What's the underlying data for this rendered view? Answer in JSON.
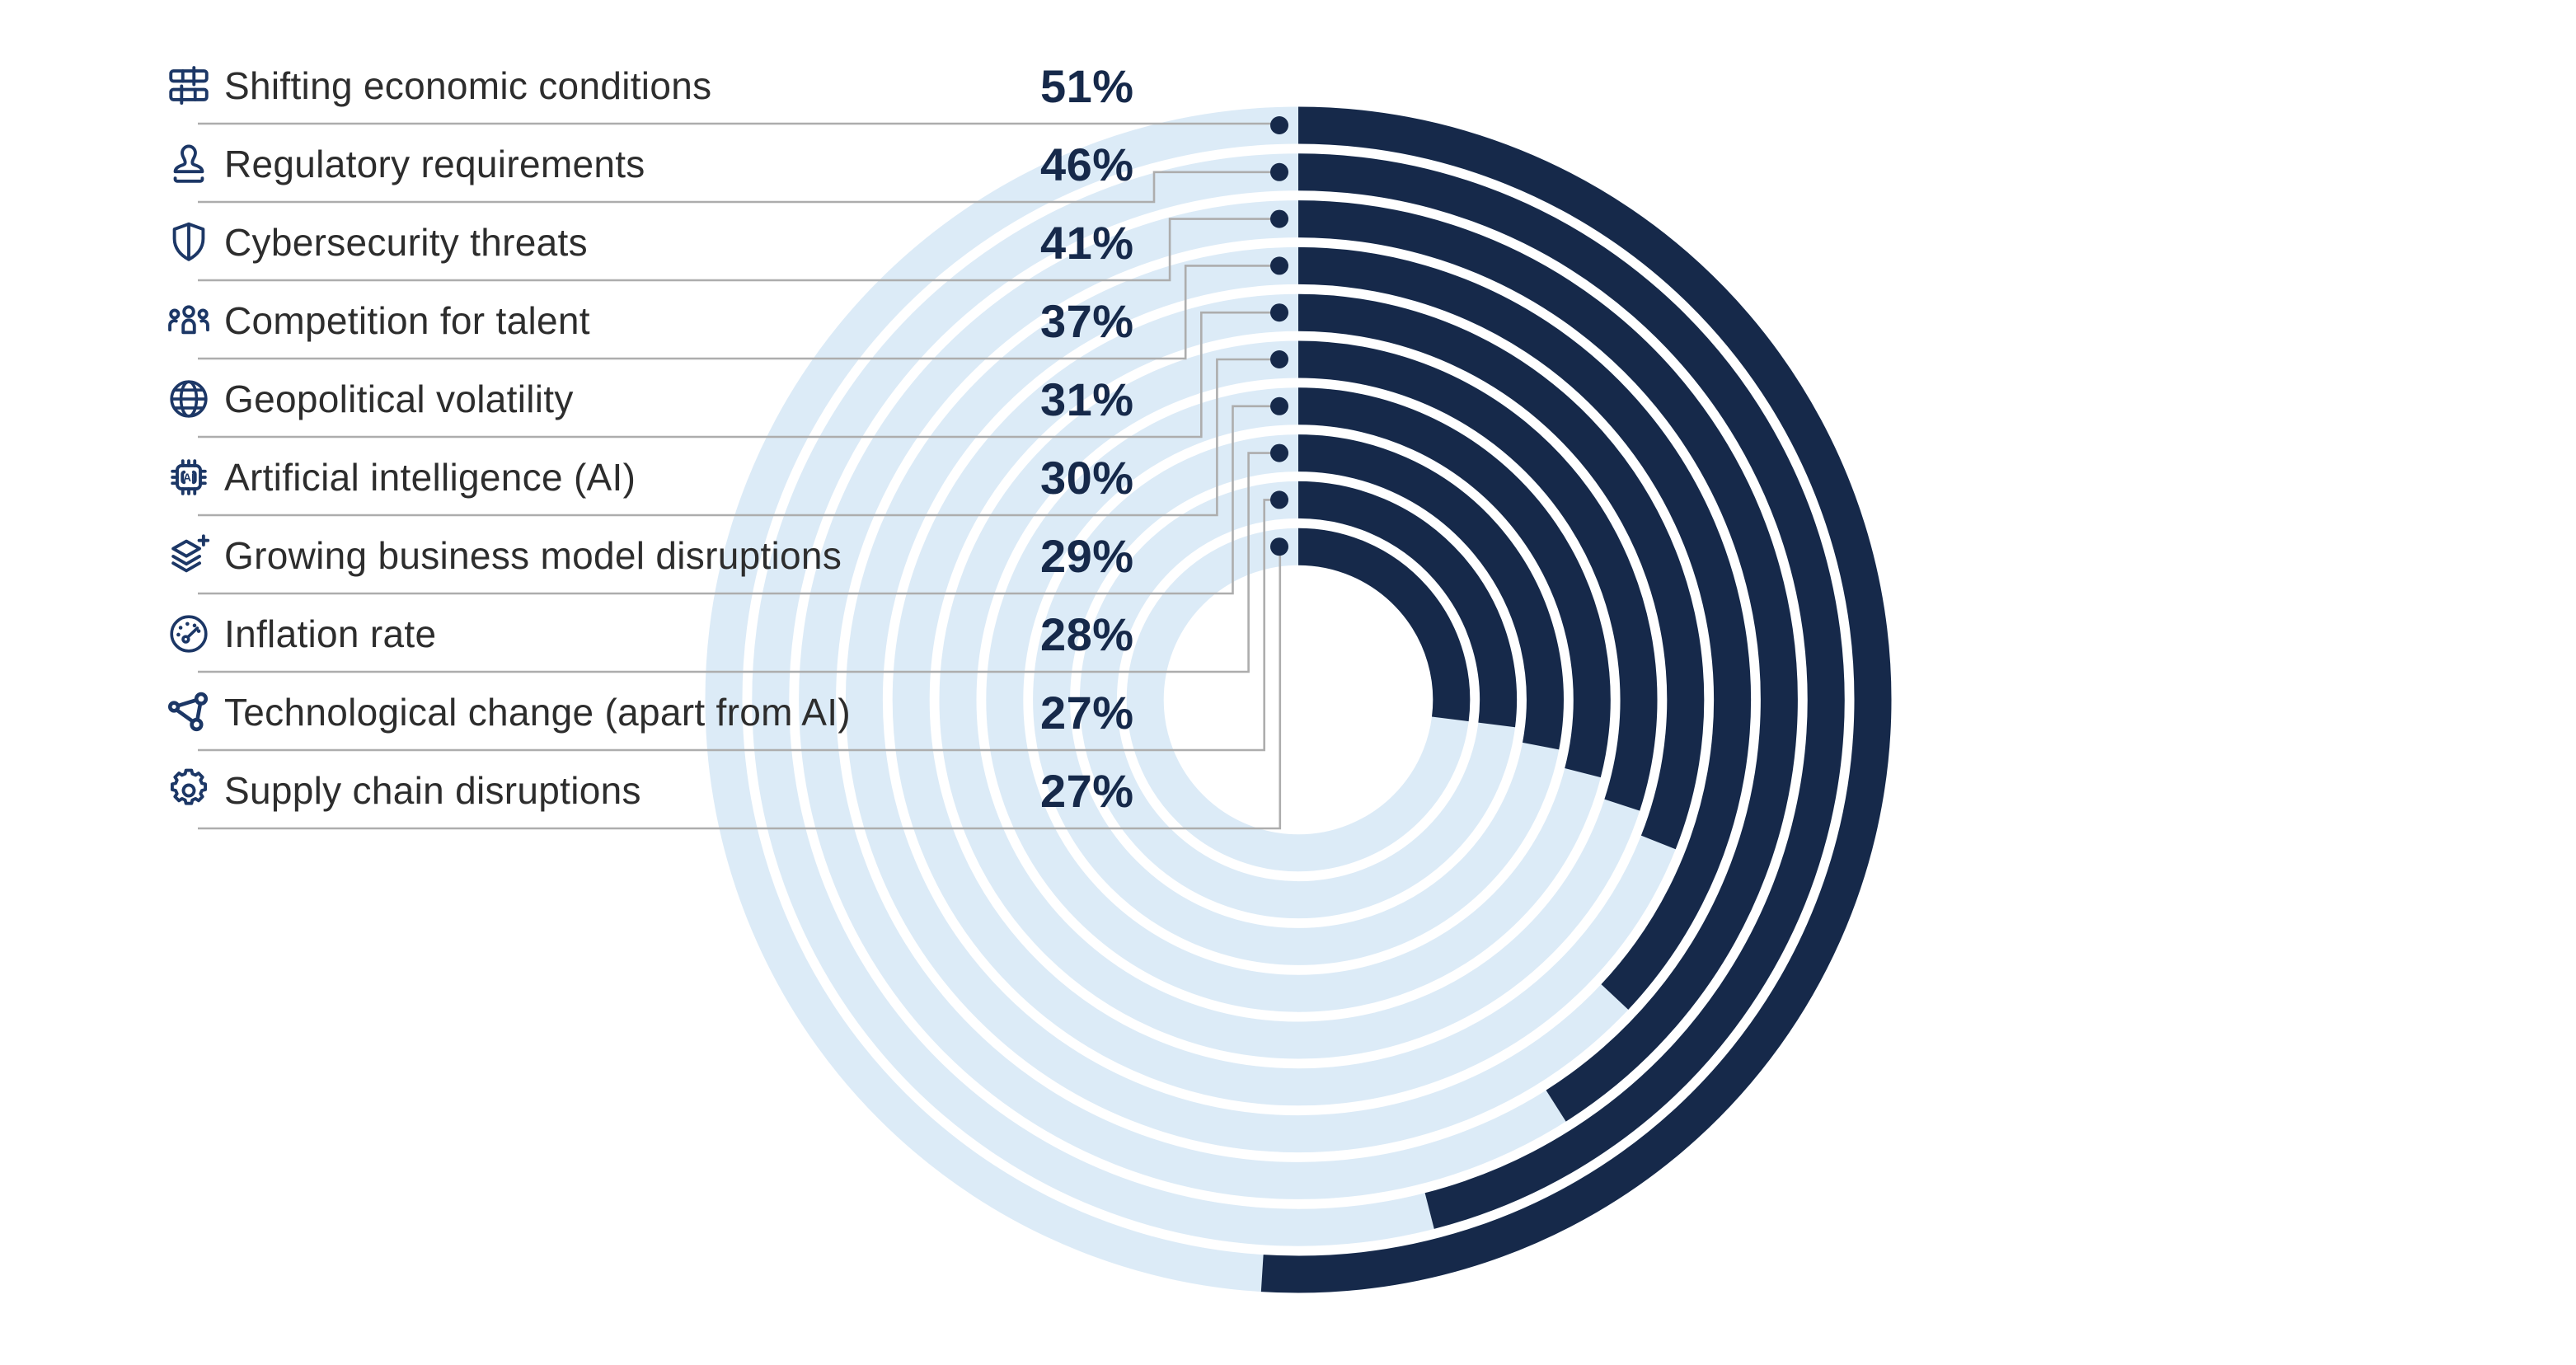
{
  "chart_data": {
    "type": "radial-bar",
    "title": "",
    "categories": [
      "Shifting economic conditions",
      "Regulatory requirements",
      "Cybersecurity threats",
      "Competition for talent",
      "Geopolitical volatility",
      "Artificial intelligence (AI)",
      "Growing business model disruptions",
      "Inflation rate",
      "Technological change (apart from AI)",
      "Supply chain disruptions"
    ],
    "values": [
      51,
      46,
      41,
      37,
      31,
      30,
      29,
      28,
      27,
      27
    ],
    "unit": "%",
    "direction": "clockwise",
    "start_angle_deg": 0,
    "angle_per_unit_deg": 3.6,
    "rings_order": "outermost-to-innermost",
    "legend_position": "left",
    "grid": false,
    "colors": {
      "arc": "#16294A",
      "track": "#DCEBF7",
      "dot": "#16294A",
      "connector": "#ADADAD",
      "label_text": "#2D2D2D",
      "value_text": "#16294A",
      "icon": "#1C3766",
      "background": "#FFFFFF"
    }
  },
  "legend": {
    "items": [
      {
        "icon": "abacus-icon",
        "label": "Shifting economic conditions",
        "value": "51%"
      },
      {
        "icon": "stamp-icon",
        "label": "Regulatory requirements",
        "value": "46%"
      },
      {
        "icon": "shield-icon",
        "label": "Cybersecurity threats",
        "value": "41%"
      },
      {
        "icon": "people-icon",
        "label": "Competition for talent",
        "value": "37%"
      },
      {
        "icon": "globe-icon",
        "label": "Geopolitical volatility",
        "value": "31%"
      },
      {
        "icon": "ai-chip-icon",
        "label": "Artificial intelligence (AI)",
        "value": "30%"
      },
      {
        "icon": "layers-plus-icon",
        "label": "Growing business model disruptions",
        "value": "29%"
      },
      {
        "icon": "gauge-icon",
        "label": "Inflation rate",
        "value": "28%"
      },
      {
        "icon": "network-icon",
        "label": "Technological change (apart from AI)",
        "value": "27%"
      },
      {
        "icon": "gear-icon",
        "label": "Supply chain disruptions",
        "value": "27%"
      }
    ]
  }
}
